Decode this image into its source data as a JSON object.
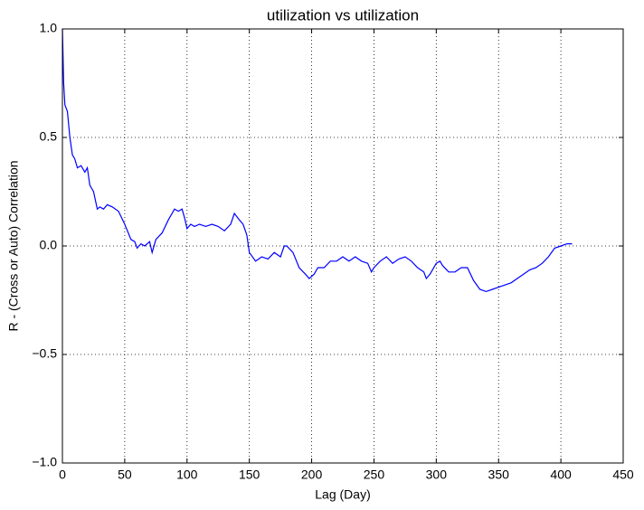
{
  "chart_data": {
    "type": "line",
    "title": "utilization vs utilization",
    "x_label": "Lag (Day)",
    "y_label": "R - (Cross or Auto) Correlation",
    "x": [
      0,
      1,
      2,
      4,
      6,
      8,
      10,
      12,
      15,
      18,
      20,
      22,
      25,
      28,
      30,
      33,
      36,
      40,
      45,
      50,
      55,
      58,
      60,
      63,
      66,
      70,
      72,
      75,
      80,
      85,
      90,
      93,
      96,
      98,
      100,
      103,
      106,
      110,
      115,
      120,
      125,
      130,
      135,
      138,
      142,
      145,
      148,
      150,
      155,
      160,
      165,
      170,
      175,
      178,
      180,
      185,
      190,
      195,
      198,
      202,
      205,
      210,
      215,
      220,
      225,
      230,
      235,
      240,
      245,
      248,
      250,
      255,
      260,
      265,
      270,
      275,
      280,
      285,
      290,
      292,
      295,
      300,
      303,
      305,
      310,
      315,
      320,
      325,
      330,
      335,
      340,
      345,
      350,
      355,
      360,
      365,
      370,
      375,
      380,
      385,
      390,
      395,
      400,
      405,
      409
    ],
    "series": [
      {
        "name": "utilization",
        "color": "#0000ff",
        "values": [
          1.0,
          0.75,
          0.65,
          0.62,
          0.5,
          0.42,
          0.4,
          0.36,
          0.37,
          0.34,
          0.36,
          0.28,
          0.25,
          0.17,
          0.18,
          0.17,
          0.19,
          0.18,
          0.16,
          0.1,
          0.03,
          0.02,
          -0.01,
          0.01,
          0.0,
          0.02,
          -0.03,
          0.03,
          0.06,
          0.12,
          0.17,
          0.16,
          0.17,
          0.13,
          0.08,
          0.1,
          0.09,
          0.1,
          0.09,
          0.1,
          0.09,
          0.07,
          0.1,
          0.15,
          0.12,
          0.1,
          0.05,
          -0.03,
          -0.07,
          -0.05,
          -0.06,
          -0.03,
          -0.05,
          0.0,
          0.0,
          -0.03,
          -0.1,
          -0.13,
          -0.15,
          -0.13,
          -0.1,
          -0.1,
          -0.07,
          -0.07,
          -0.05,
          -0.07,
          -0.05,
          -0.07,
          -0.08,
          -0.12,
          -0.1,
          -0.07,
          -0.05,
          -0.08,
          -0.06,
          -0.05,
          -0.07,
          -0.1,
          -0.12,
          -0.15,
          -0.13,
          -0.08,
          -0.07,
          -0.09,
          -0.12,
          -0.12,
          -0.1,
          -0.1,
          -0.16,
          -0.2,
          -0.21,
          -0.2,
          -0.19,
          -0.18,
          -0.17,
          -0.15,
          -0.13,
          -0.11,
          -0.1,
          -0.08,
          -0.05,
          -0.01,
          0.0,
          0.01,
          0.01
        ]
      }
    ],
    "xlim": [
      0,
      450
    ],
    "xticks": [
      0,
      50,
      100,
      150,
      200,
      250,
      300,
      350,
      400,
      450
    ],
    "ylim": [
      -1,
      1
    ],
    "yticks": [
      {
        "value": -1,
        "label": "−1.0"
      },
      {
        "value": -0.5,
        "label": "−0.5"
      },
      {
        "value": 0,
        "label": "0.0"
      },
      0.5,
      {
        "value": 1,
        "label": "1.0"
      }
    ],
    "grid": true
  }
}
